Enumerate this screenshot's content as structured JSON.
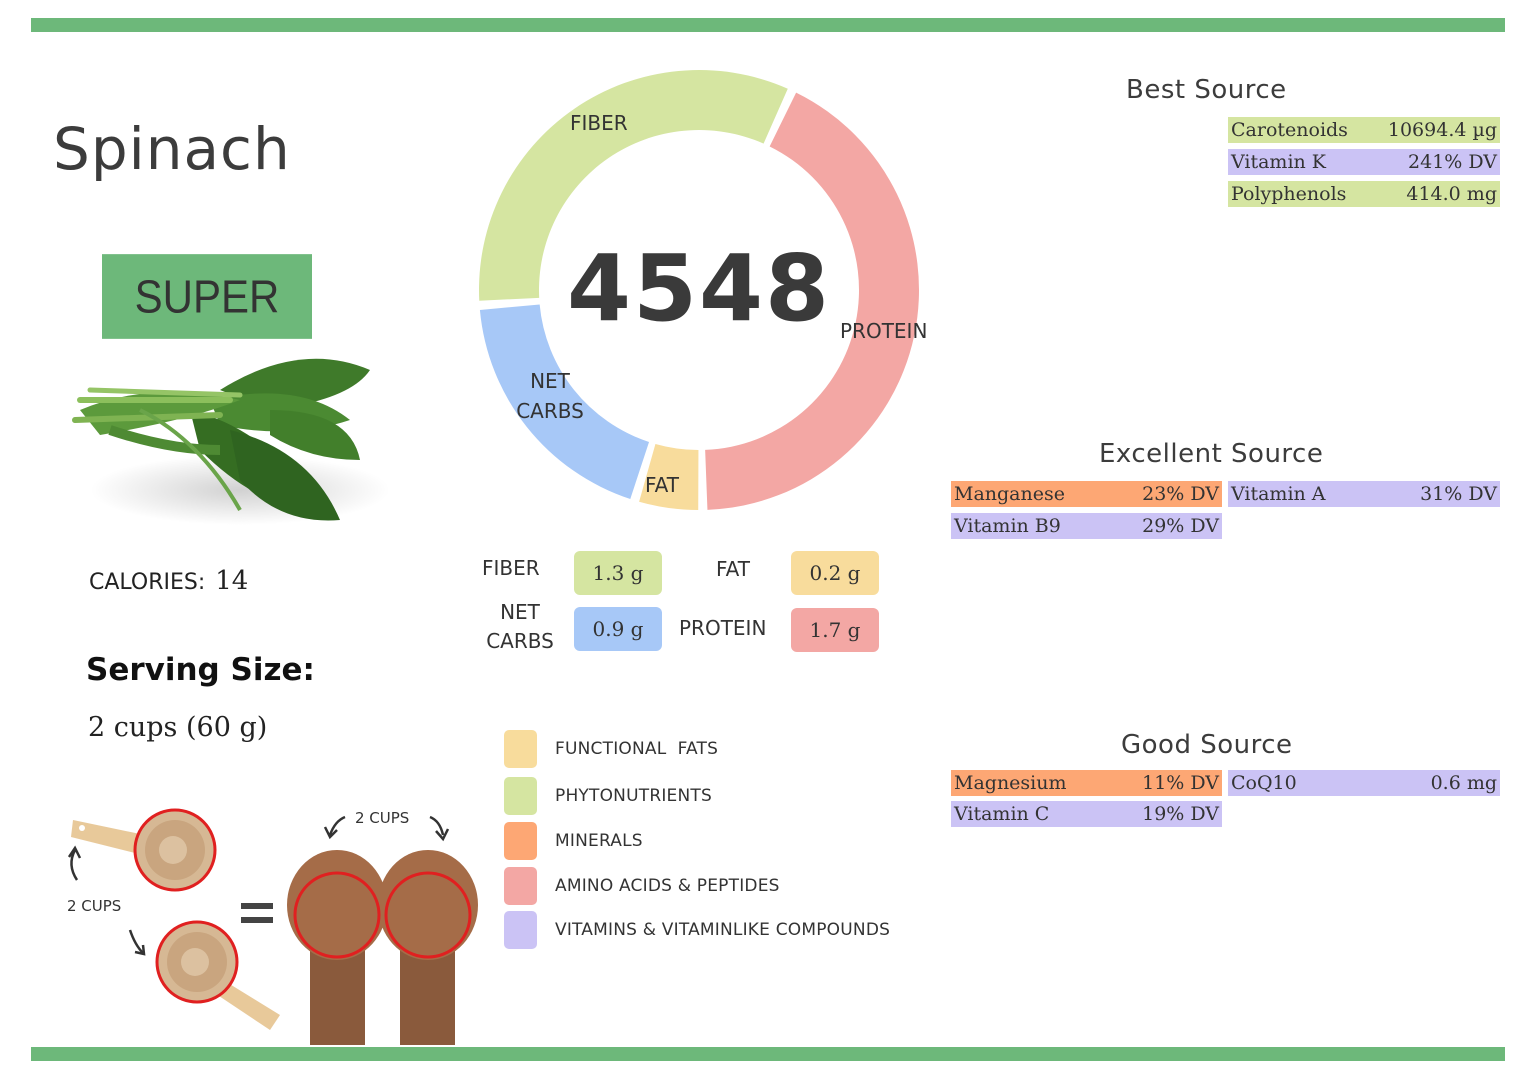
{
  "colors": {
    "brand_green": "#6db87a",
    "fiber": "#d5e5a1",
    "net_carbs": "#a7c8f7",
    "fat": "#f8dc9c",
    "protein": "#f3a7a4",
    "functional_fats": "#f8dc9c",
    "phytonutrients": "#d5e5a1",
    "minerals": "#fda774",
    "amino_acids": "#f3a7a4",
    "vitamins": "#cbc3f5"
  },
  "header": {
    "title": "Spinach",
    "badge": "SUPER"
  },
  "calories": {
    "label": "CALORIES:",
    "value": "14"
  },
  "serving": {
    "title": "Serving Size:",
    "value": "2 cups (60 g)",
    "illustration_left_label": "2 CUPS",
    "illustration_right_label": "2 CUPS",
    "equals": "="
  },
  "donut": {
    "center_value": "4548",
    "segments": [
      {
        "name": "PROTEIN",
        "start_deg": 25,
        "end_deg": 179
      },
      {
        "name": "FAT",
        "start_deg": 179,
        "end_deg": 197
      },
      {
        "name": "NET CARBS",
        "start_deg": 197,
        "end_deg": 266
      },
      {
        "name": "FIBER",
        "start_deg": 266,
        "end_deg": 385
      }
    ],
    "labels": {
      "fiber": "FIBER",
      "protein": "PROTEIN",
      "net_carbs_line1": "NET",
      "net_carbs_line2": "CARBS",
      "fat": "FAT"
    }
  },
  "chart_data": {
    "type": "pie",
    "title": "4548",
    "categories": [
      "Fiber",
      "Net Carbs",
      "Fat",
      "Protein"
    ],
    "values": [
      1.3,
      0.9,
      0.2,
      1.7
    ],
    "units": "g",
    "legend_position": "none"
  },
  "macros": {
    "fiber": {
      "label": "FIBER",
      "value": "1.3 g"
    },
    "fat": {
      "label": "FAT",
      "value": "0.2 g"
    },
    "net_carbs": {
      "label_line1": "NET",
      "label_line2": "CARBS",
      "value": "0.9 g"
    },
    "protein": {
      "label": "PROTEIN",
      "value": "1.7 g"
    }
  },
  "legend": [
    {
      "label": "FUNCTIONAL  FATS",
      "key": "functional_fats"
    },
    {
      "label": "PHYTONUTRIENTS",
      "key": "phytonutrients"
    },
    {
      "label": "MINERALS",
      "key": "minerals"
    },
    {
      "label": "AMINO ACIDS & PEPTIDES",
      "key": "amino_acids"
    },
    {
      "label": "VITAMINS & VITAMINLIKE COMPOUNDS",
      "key": "vitamins"
    }
  ],
  "best_source": {
    "title": "Best Source",
    "items": [
      {
        "name": "Carotenoids",
        "value": "10694.4 µg",
        "category": "phytonutrients"
      },
      {
        "name": "Vitamin K",
        "value": "241% DV",
        "category": "vitamins"
      },
      {
        "name": "Polyphenols",
        "value": "414.0 mg",
        "category": "phytonutrients"
      }
    ]
  },
  "excellent_source": {
    "title": "Excellent Source",
    "items": [
      {
        "name": "Manganese",
        "value": "23% DV",
        "category": "minerals"
      },
      {
        "name": "Vitamin A",
        "value": "31% DV",
        "category": "vitamins"
      },
      {
        "name": "Vitamin B9",
        "value": "29% DV",
        "category": "vitamins"
      }
    ]
  },
  "good_source": {
    "title": "Good Source",
    "items": [
      {
        "name": "Magnesium",
        "value": "11% DV",
        "category": "minerals"
      },
      {
        "name": "CoQ10",
        "value": "0.6 mg",
        "category": "vitamins"
      },
      {
        "name": "Vitamin C",
        "value": "19% DV",
        "category": "vitamins"
      }
    ]
  }
}
